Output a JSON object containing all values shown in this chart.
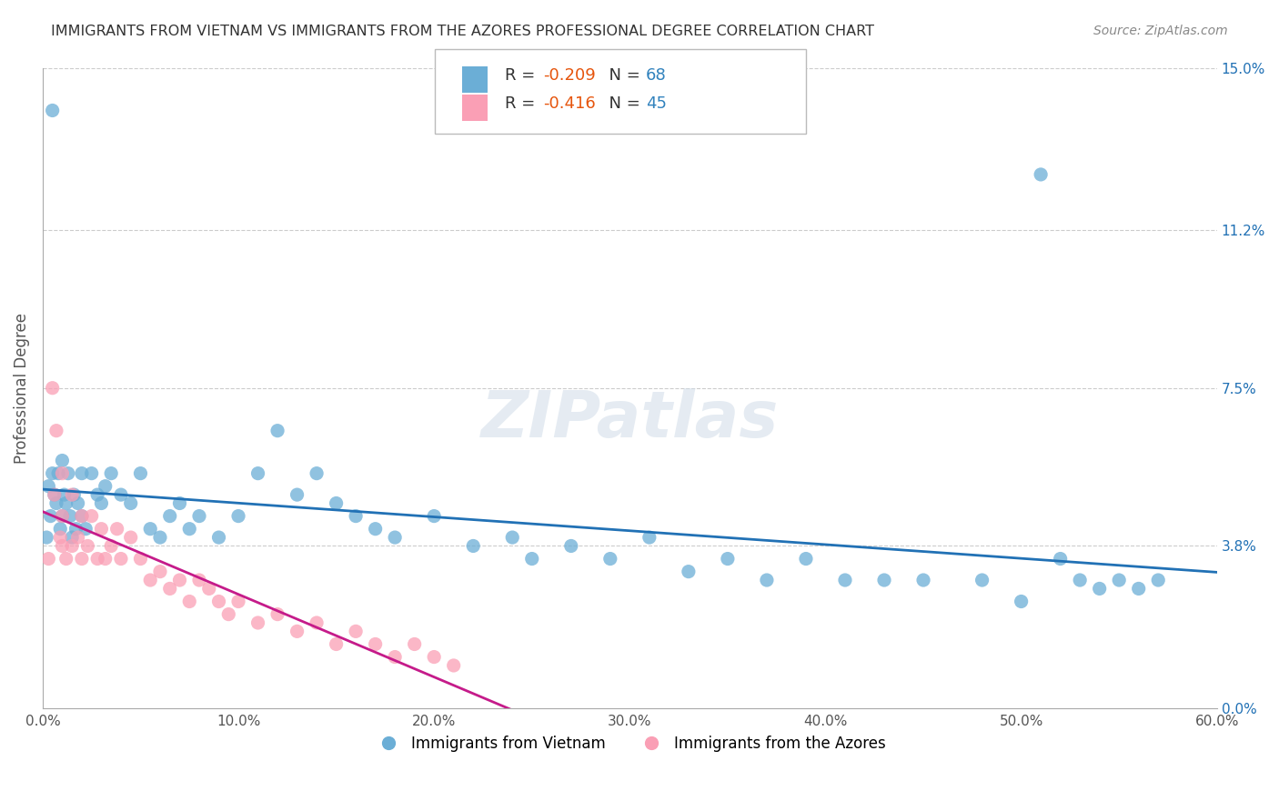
{
  "title": "IMMIGRANTS FROM VIETNAM VS IMMIGRANTS FROM THE AZORES PROFESSIONAL DEGREE CORRELATION CHART",
  "source": "Source: ZipAtlas.com",
  "ylabel": "Professional Degree",
  "x_tick_labels": [
    "0.0%",
    "10.0%",
    "20.0%",
    "30.0%",
    "40.0%",
    "50.0%",
    "60.0%"
  ],
  "x_tick_values": [
    0.0,
    10.0,
    20.0,
    30.0,
    40.0,
    50.0,
    60.0
  ],
  "y_tick_labels": [
    "0.0%",
    "3.8%",
    "7.5%",
    "11.2%",
    "15.0%"
  ],
  "y_tick_values": [
    0.0,
    3.8,
    7.5,
    11.2,
    15.0
  ],
  "xlim": [
    0.0,
    60.0
  ],
  "ylim": [
    0.0,
    15.0
  ],
  "blue_color": "#6baed6",
  "pink_color": "#fa9fb5",
  "blue_line_color": "#2171b5",
  "pink_line_color": "#c51b8a",
  "legend_r_color": "#e6550d",
  "legend_n_color": "#3182bd",
  "watermark": "ZIPatlas",
  "bottom_legend_blue": "Immigrants from Vietnam",
  "bottom_legend_pink": "Immigrants from the Azores",
  "vietnam_x": [
    0.2,
    0.3,
    0.4,
    0.5,
    0.6,
    0.7,
    0.8,
    0.9,
    1.0,
    1.0,
    1.1,
    1.2,
    1.3,
    1.4,
    1.5,
    1.6,
    1.7,
    1.8,
    2.0,
    2.0,
    2.2,
    2.5,
    2.8,
    3.0,
    3.2,
    3.5,
    4.0,
    4.5,
    5.0,
    5.5,
    6.0,
    6.5,
    7.0,
    7.5,
    8.0,
    9.0,
    10.0,
    11.0,
    12.0,
    13.0,
    14.0,
    15.0,
    16.0,
    17.0,
    18.0,
    20.0,
    22.0,
    24.0,
    25.0,
    27.0,
    29.0,
    31.0,
    33.0,
    35.0,
    37.0,
    39.0,
    41.0,
    43.0,
    45.0,
    48.0,
    50.0,
    51.0,
    52.0,
    53.0,
    54.0,
    55.0,
    56.0,
    57.0,
    0.5
  ],
  "vietnam_y": [
    4.0,
    5.2,
    4.5,
    5.5,
    5.0,
    4.8,
    5.5,
    4.2,
    4.5,
    5.8,
    5.0,
    4.8,
    5.5,
    4.5,
    4.0,
    5.0,
    4.2,
    4.8,
    5.5,
    4.5,
    4.2,
    5.5,
    5.0,
    4.8,
    5.2,
    5.5,
    5.0,
    4.8,
    5.5,
    4.2,
    4.0,
    4.5,
    4.8,
    4.2,
    4.5,
    4.0,
    4.5,
    5.5,
    6.5,
    5.0,
    5.5,
    4.8,
    4.5,
    4.2,
    4.0,
    4.5,
    3.8,
    4.0,
    3.5,
    3.8,
    3.5,
    4.0,
    3.2,
    3.5,
    3.0,
    3.5,
    3.0,
    3.0,
    3.0,
    3.0,
    2.5,
    12.5,
    3.5,
    3.0,
    2.8,
    3.0,
    2.8,
    3.0,
    14.0
  ],
  "azores_x": [
    0.3,
    0.5,
    0.7,
    0.9,
    1.0,
    1.0,
    1.0,
    1.2,
    1.5,
    1.5,
    1.8,
    2.0,
    2.0,
    2.3,
    2.5,
    2.8,
    3.0,
    3.2,
    3.5,
    3.8,
    4.0,
    4.5,
    5.0,
    5.5,
    6.0,
    6.5,
    7.0,
    7.5,
    8.0,
    8.5,
    9.0,
    9.5,
    10.0,
    11.0,
    12.0,
    13.0,
    14.0,
    15.0,
    16.0,
    17.0,
    18.0,
    19.0,
    20.0,
    21.0,
    0.6
  ],
  "azores_y": [
    3.5,
    7.5,
    6.5,
    4.0,
    5.5,
    3.8,
    4.5,
    3.5,
    3.8,
    5.0,
    4.0,
    4.5,
    3.5,
    3.8,
    4.5,
    3.5,
    4.2,
    3.5,
    3.8,
    4.2,
    3.5,
    4.0,
    3.5,
    3.0,
    3.2,
    2.8,
    3.0,
    2.5,
    3.0,
    2.8,
    2.5,
    2.2,
    2.5,
    2.0,
    2.2,
    1.8,
    2.0,
    1.5,
    1.8,
    1.5,
    1.2,
    1.5,
    1.2,
    1.0,
    5.0
  ]
}
